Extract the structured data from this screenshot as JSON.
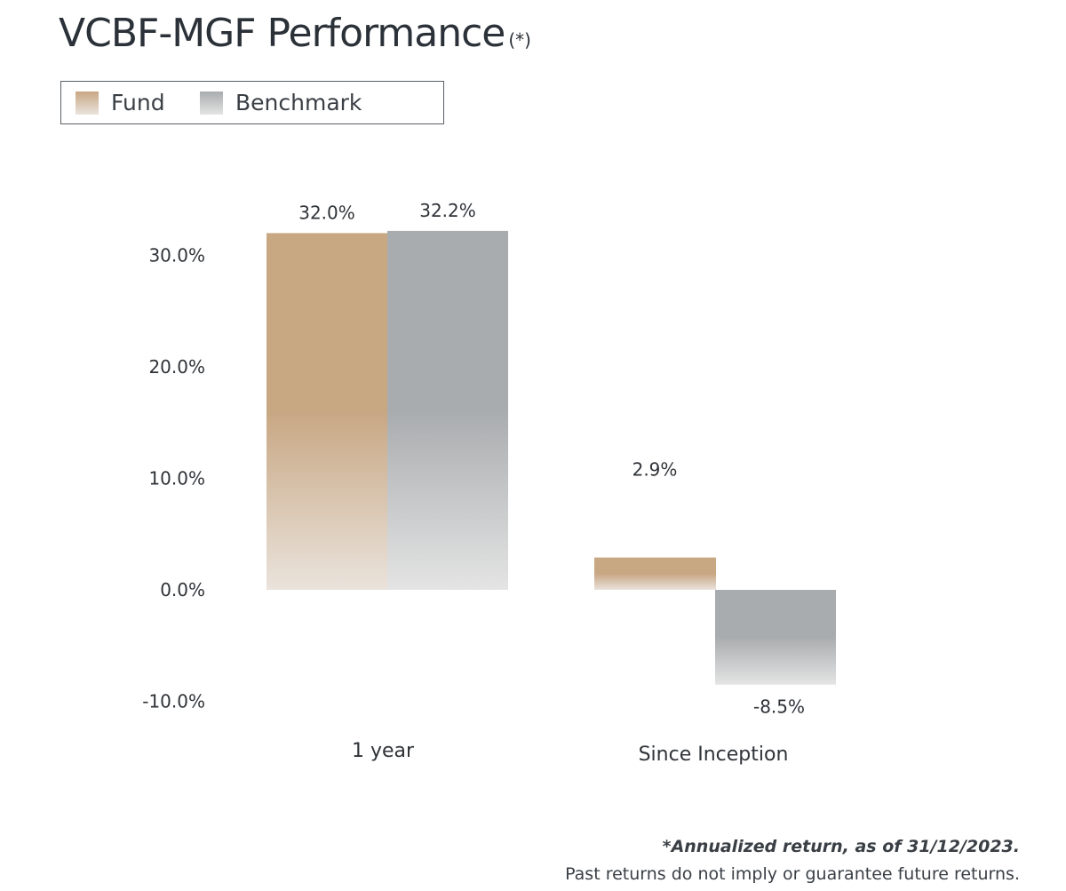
{
  "title": "VCBF-MGF Performance",
  "title_note": "(*)",
  "footnote": "*Annualized return, as of 31/12/2023.",
  "disclaimer": "Past returns do not imply or guarantee future returns.",
  "colors": {
    "fund_top": "#c8a783",
    "fund_bottom": "#eae3dc",
    "benchmark_top": "#a9acae",
    "benchmark_bottom": "#e4e4e4"
  },
  "chart_data": {
    "type": "bar",
    "categories": [
      "1 year",
      "Since Inception"
    ],
    "series": [
      {
        "name": "Fund",
        "values": [
          32.0,
          2.9
        ],
        "labels": [
          "32.0%",
          "2.9%"
        ]
      },
      {
        "name": "Benchmark",
        "values": [
          32.2,
          -8.5
        ],
        "labels": [
          "32.2%",
          "-8.5%"
        ]
      }
    ],
    "y_ticks": [
      {
        "value": 30,
        "label": "30.0%"
      },
      {
        "value": 20,
        "label": "20.0%"
      },
      {
        "value": 10,
        "label": "10.0%"
      },
      {
        "value": 0,
        "label": "0.0%"
      },
      {
        "value": -10,
        "label": "-10.0%"
      }
    ],
    "ylim": [
      -10,
      32.2
    ],
    "legend": "top-left",
    "grid": false
  }
}
